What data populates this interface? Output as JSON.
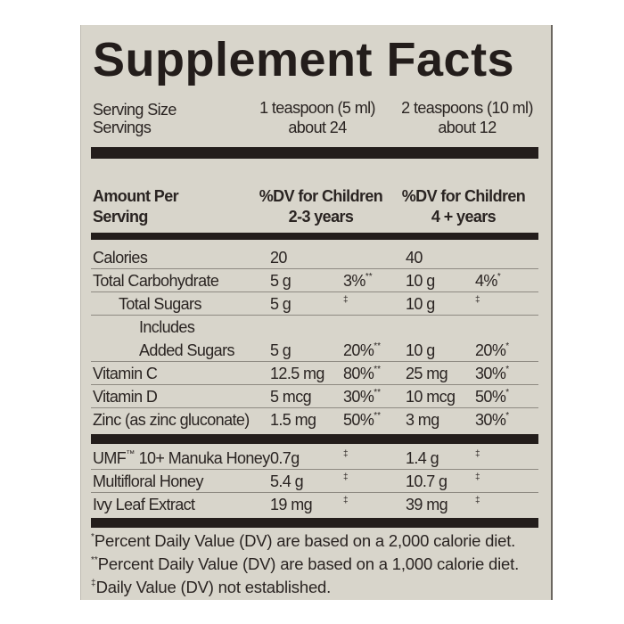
{
  "title": "Supplement Facts",
  "serving": {
    "size_label": "Serving Size",
    "servings_label": "Servings",
    "col1_size": "1 teaspoon (5 ml)",
    "col1_servings": "about 24",
    "col2_size": "2 teaspoons (10 ml)",
    "col2_servings": "about 12"
  },
  "header": {
    "amount_line1": "Amount Per",
    "amount_line2": "Serving",
    "col1_line1": "%DV for Children",
    "col1_line2": "2-3 years",
    "col2_line1": "%DV for Children",
    "col2_line2": "4 + years"
  },
  "rows": [
    {
      "name": "Calories",
      "indent": 0,
      "a1": "20",
      "d1": "",
      "m1": "",
      "a2": "40",
      "d2": "",
      "m2": ""
    },
    {
      "name": "Total Carbohydrate",
      "indent": 0,
      "a1": "5 g",
      "d1": "3%",
      "m1": "**",
      "a2": "10 g",
      "d2": "4%",
      "m2": "*"
    },
    {
      "name": "Total Sugars",
      "indent": 1,
      "a1": "5 g",
      "d1": "",
      "m1": "‡",
      "a2": "10 g",
      "d2": "",
      "m2": "‡"
    },
    {
      "name": "Includes",
      "indent": 2,
      "a1": "",
      "d1": "",
      "m1": "",
      "a2": "",
      "d2": "",
      "m2": "",
      "noline": true
    },
    {
      "name": "Added Sugars",
      "indent": 2,
      "a1": "5 g",
      "d1": "20%",
      "m1": "**",
      "a2": "10 g",
      "d2": "20%",
      "m2": "*"
    },
    {
      "name": "Vitamin C",
      "indent": 0,
      "a1": "12.5 mg",
      "d1": "80%",
      "m1": "**",
      "a2": "25 mg",
      "d2": "30%",
      "m2": "*"
    },
    {
      "name": "Vitamin D",
      "indent": 0,
      "a1": "5 mcg",
      "d1": "30%",
      "m1": "**",
      "a2": "10 mcg",
      "d2": "50%",
      "m2": "*"
    },
    {
      "name": "Zinc (as zinc gluconate)",
      "indent": 0,
      "a1": "1.5 mg",
      "d1": "50%",
      "m1": "**",
      "a2": "3 mg",
      "d2": "30%",
      "m2": "*"
    }
  ],
  "other_rows": [
    {
      "name": "UMF",
      "tm": "™",
      "name2": " 10+ Manuka Honey",
      "a1": "0.7g",
      "m1": "‡",
      "a2": "1.4 g",
      "m2": "‡"
    },
    {
      "name": "Multifloral Honey",
      "tm": "",
      "name2": "",
      "a1": "5.4 g",
      "m1": "‡",
      "a2": "10.7 g",
      "m2": "‡"
    },
    {
      "name": "Ivy Leaf Extract",
      "tm": "",
      "name2": "",
      "a1": "19 mg",
      "m1": "‡",
      "a2": "39 mg",
      "m2": "‡"
    }
  ],
  "footnotes": [
    {
      "mark": "*",
      "text": "Percent Daily Value (DV) are based on a 2,000 calorie diet."
    },
    {
      "mark": "**",
      "text": "Percent Daily Value (DV) are based on a 1,000 calorie diet."
    },
    {
      "mark": "‡",
      "text": "Daily Value (DV) not established."
    }
  ]
}
